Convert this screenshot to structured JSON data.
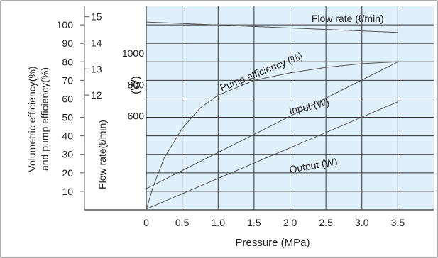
{
  "chart_data": {
    "type": "line",
    "title": "",
    "xlabel": "Pressure (MPa)",
    "x_ticks": [
      "0",
      "0.5",
      "1.0",
      "1.5",
      "2.0",
      "2.5",
      "3.0",
      "3.5"
    ],
    "xlim": [
      0,
      4.0
    ],
    "axes": {
      "efficiency": {
        "label_lines": [
          "Volumetric efficiency(%)",
          "and pump efficiency(%)"
        ],
        "ticks": [
          "100",
          "90",
          "80",
          "70",
          "60",
          "50",
          "40",
          "30",
          "20",
          "10"
        ],
        "range": [
          0,
          110
        ]
      },
      "flow": {
        "label": "Flow rate(ℓ/min)",
        "ticks": [
          "15",
          "14",
          "13",
          "12"
        ],
        "range": [
          7.6,
          15.4
        ]
      },
      "power": {
        "label": "(W)",
        "ticks": [
          "1000",
          "800",
          "600"
        ],
        "range": [
          0,
          1300
        ]
      }
    },
    "series": [
      {
        "name": "Flow rate (ℓ/min)",
        "axis": "flow",
        "x": [
          0,
          3.5
        ],
        "y": [
          14.8,
          14.4
        ],
        "label_at": [
          2.3,
          14.8
        ],
        "label_rotate": 0
      },
      {
        "name": "Pump efficiency (%)",
        "axis": "efficiency",
        "x": [
          0,
          0.1,
          0.25,
          0.5,
          0.75,
          1.0,
          1.5,
          2.0,
          2.5,
          3.0,
          3.5
        ],
        "y": [
          0,
          13,
          28,
          44,
          55,
          62,
          70,
          74,
          77,
          79,
          80
        ],
        "label_at": [
          1.05,
          64
        ],
        "label_rotate": -22
      },
      {
        "name": "Input (W)",
        "axis": "power",
        "x": [
          0,
          3.5
        ],
        "y": [
          135,
          945
        ],
        "label_at": [
          2.0,
          610
        ],
        "label_rotate": -13
      },
      {
        "name": "Output (W)",
        "axis": "power",
        "x": [
          0,
          3.5
        ],
        "y": [
          5,
          690
        ],
        "label_at": [
          2.0,
          235
        ],
        "label_rotate": -10
      }
    ],
    "grid": true,
    "plot_background": "#dff0fb",
    "grid_color": "#333333",
    "line_color": "#555555"
  }
}
